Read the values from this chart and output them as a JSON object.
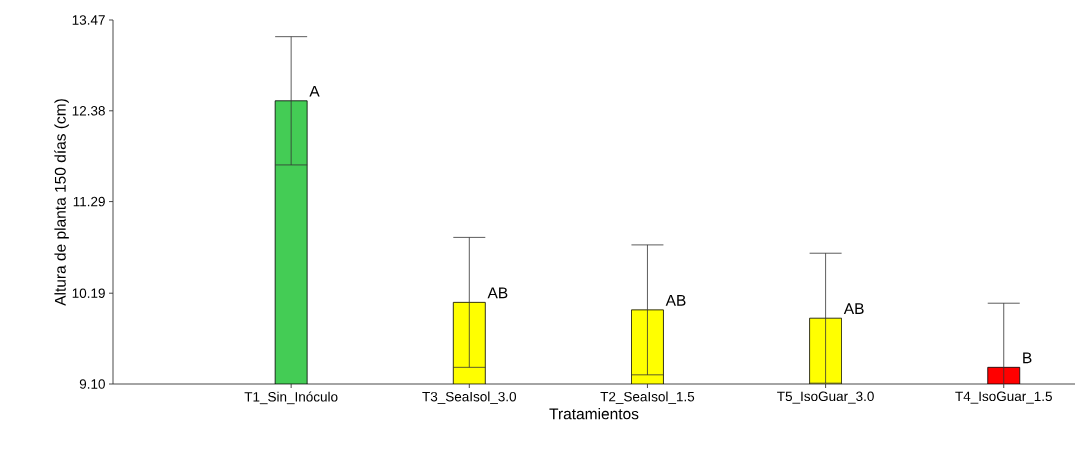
{
  "chart_data": {
    "type": "bar",
    "xlabel": "Tratamientos",
    "ylabel": "Altura de planta 150 días (cm)",
    "categories": [
      "T1_Sin_Inóculo",
      "T3_SeaIsol_3.0",
      "T2_SeaIsol_1.5",
      "T5_IsoGuar_3.0",
      "T4_IsoGuar_1.5"
    ],
    "values": [
      12.5,
      10.08,
      9.99,
      9.89,
      9.3
    ],
    "errors": [
      0.77,
      0.78,
      0.78,
      0.78,
      0.77
    ],
    "colors": [
      "#44cc55",
      "#ffff00",
      "#ffff00",
      "#ffff00",
      "#ff0000"
    ],
    "ylim": [
      9.1,
      13.47
    ],
    "yticks": [
      {
        "value": 9.1,
        "label": "9.10"
      },
      {
        "value": 10.19,
        "label": "10.19"
      },
      {
        "value": 11.29,
        "label": "11.29"
      },
      {
        "value": 12.38,
        "label": "12.38"
      },
      {
        "value": 13.47,
        "label": "13.47"
      }
    ],
    "annotations": [
      "A",
      "AB",
      "AB",
      "AB",
      "B"
    ]
  }
}
